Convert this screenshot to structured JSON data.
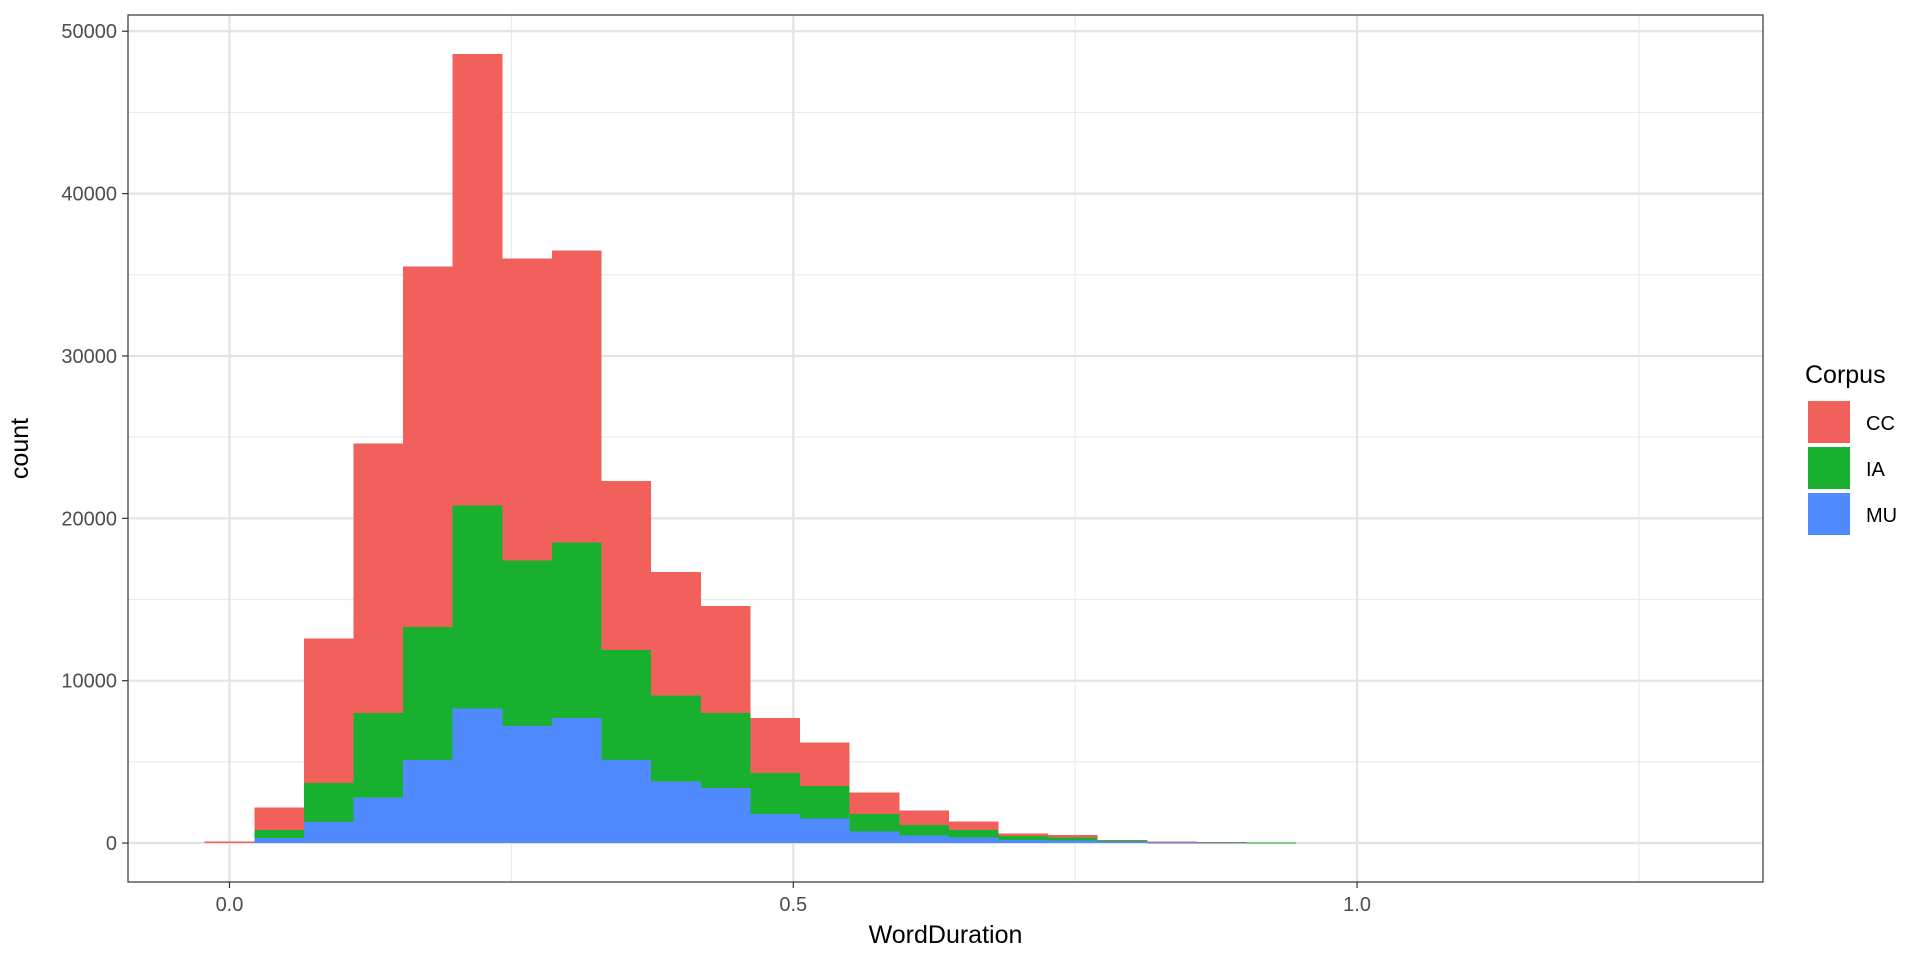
{
  "chart_data": {
    "type": "bar",
    "stacked": true,
    "title": "",
    "xlabel": "WordDuration",
    "ylabel": "count",
    "xlim": [
      -0.09,
      1.36
    ],
    "ylim": [
      -2400,
      51000
    ],
    "x_ticks": [
      0.0,
      0.5,
      1.0
    ],
    "x_tick_labels": [
      "0.0",
      "0.5",
      "1.0"
    ],
    "y_ticks": [
      0,
      10000,
      20000,
      30000,
      40000,
      50000
    ],
    "y_tick_labels": [
      "0",
      "10000",
      "20000",
      "30000",
      "40000",
      "50000"
    ],
    "grid": true,
    "legend": {
      "title": "Corpus",
      "position": "right"
    },
    "bin_width": 0.044,
    "x": [
      0.0,
      0.044,
      0.088,
      0.132,
      0.176,
      0.22,
      0.264,
      0.308,
      0.352,
      0.396,
      0.44,
      0.484,
      0.528,
      0.572,
      0.616,
      0.66,
      0.704,
      0.748,
      0.792,
      0.836,
      0.88,
      0.924
    ],
    "series": [
      {
        "name": "MU",
        "color": "#4f8bff",
        "values": [
          0,
          300,
          1300,
          2800,
          5100,
          8300,
          7200,
          7700,
          5100,
          3800,
          3400,
          1800,
          1500,
          700,
          450,
          330,
          180,
          150,
          80,
          30,
          20,
          10
        ]
      },
      {
        "name": "IA",
        "color": "#19b030",
        "values": [
          0,
          500,
          2400,
          5200,
          8200,
          12500,
          10200,
          10800,
          6800,
          5300,
          4600,
          2500,
          2000,
          1100,
          650,
          470,
          250,
          200,
          90,
          40,
          40,
          20
        ]
      },
      {
        "name": "CC",
        "color": "#f2605b",
        "values": [
          100,
          1400,
          8900,
          16600,
          22200,
          27800,
          18600,
          18000,
          10400,
          7600,
          6600,
          3400,
          2700,
          1300,
          900,
          520,
          170,
          150,
          30,
          20,
          10,
          0
        ]
      }
    ],
    "legend_order": [
      "CC",
      "IA",
      "MU"
    ]
  }
}
